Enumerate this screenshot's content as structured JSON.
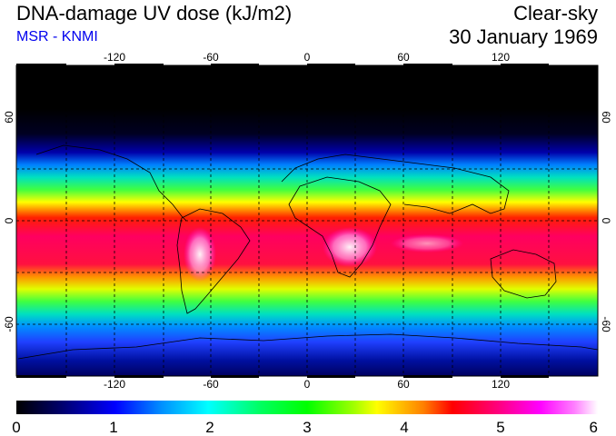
{
  "header": {
    "title": "DNA-damage UV dose (kJ/m2)",
    "source": "MSR - KNMI",
    "sky_condition": "Clear-sky",
    "date": "30 January 1969"
  },
  "map": {
    "longitude_ticks": [
      "-120",
      "-60",
      "0",
      "60",
      "120"
    ],
    "latitude_ticks": [
      "60",
      "0",
      "-60"
    ],
    "graticule_lon_spacing_deg": 30,
    "graticule_lat_spacing_deg": 30
  },
  "colorbar": {
    "labels": [
      "0",
      "1",
      "2",
      "3",
      "4",
      "5",
      "6"
    ],
    "min": 0,
    "max": 6,
    "colors": [
      "#000000",
      "#00008b",
      "#0000ff",
      "#0080ff",
      "#00ffff",
      "#00ff80",
      "#00ff00",
      "#80ff00",
      "#ffff00",
      "#ff8000",
      "#ff0000",
      "#ff0080",
      "#ff00ff",
      "#ff80ff",
      "#ffffff"
    ]
  }
}
